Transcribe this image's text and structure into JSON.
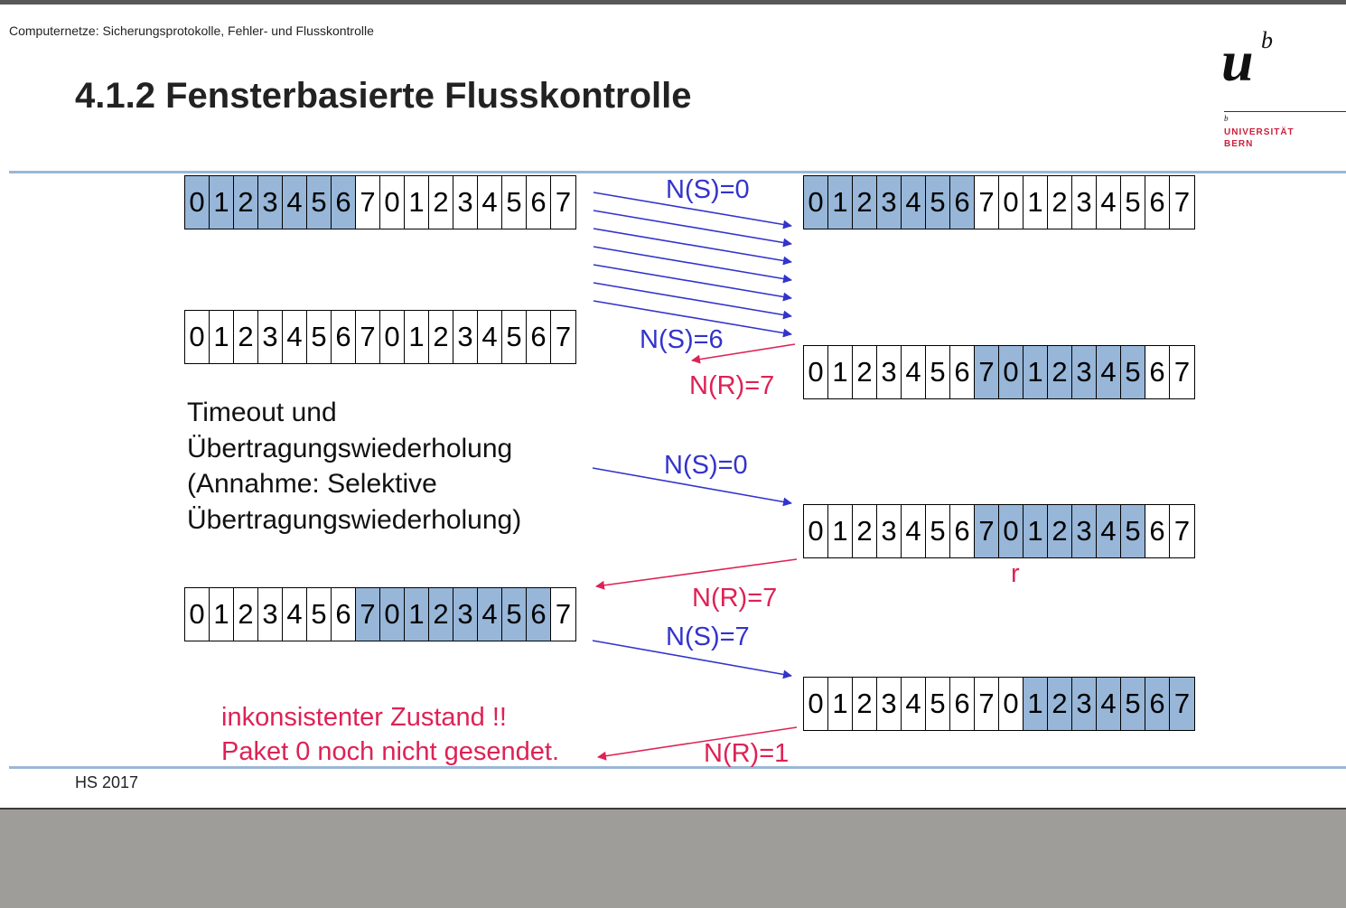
{
  "header": "Computernetze: Sicherungsprotokolle, Fehler- und Flusskontrolle",
  "title": "4.1.2 Fensterbasierte Flusskontrolle",
  "logo": {
    "u": "u",
    "b": "b",
    "small_b": "b",
    "line1": "UNIVERSITÄT",
    "line2": "BERN"
  },
  "footer": "HS 2017",
  "sequence": [
    "0",
    "1",
    "2",
    "3",
    "4",
    "5",
    "6",
    "7",
    "0",
    "1",
    "2",
    "3",
    "4",
    "5",
    "6",
    "7"
  ],
  "rows": [
    {
      "id": "sender-1",
      "highlight": [
        0,
        1,
        2,
        3,
        4,
        5,
        6
      ]
    },
    {
      "id": "receiver-1",
      "highlight": [
        0,
        1,
        2,
        3,
        4,
        5,
        6
      ]
    },
    {
      "id": "sender-2",
      "highlight": []
    },
    {
      "id": "receiver-2",
      "highlight": [
        7,
        8,
        9,
        10,
        11,
        12,
        13
      ]
    },
    {
      "id": "receiver-3",
      "highlight": [
        7,
        8,
        9,
        10,
        11,
        12,
        13
      ]
    },
    {
      "id": "sender-3",
      "highlight": [
        7,
        8,
        9,
        10,
        11,
        12,
        13,
        14
      ]
    },
    {
      "id": "receiver-4",
      "highlight": [
        9,
        10,
        11,
        12,
        13,
        14,
        15
      ]
    }
  ],
  "labels": {
    "ns0_top": "N(S)=0",
    "ns6": "N(S)=6",
    "nr7_top": "N(R)=7",
    "ns0_mid": "N(S)=0",
    "r_marker": "r",
    "nr7_mid": "N(R)=7",
    "ns7": "N(S)=7",
    "nr1": "N(R)=1"
  },
  "timeout_text": [
    "Timeout und",
    "Übertragungswiederholung",
    "(Annahme: Selektive",
    "Übertragungswiederholung)"
  ],
  "warning_text": [
    "inkonsistenter Zustand !!",
    "Paket 0 noch nicht gesendet."
  ],
  "colors": {
    "send_arrow": "#3333cc",
    "ack_arrow": "#dd2255",
    "highlight": "#97b6d8",
    "rule": "#9bb7d6"
  }
}
